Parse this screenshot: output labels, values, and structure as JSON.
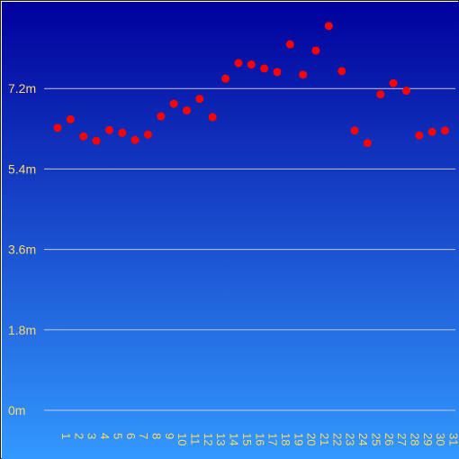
{
  "chart_data": {
    "type": "scatter",
    "title": "",
    "xlabel": "",
    "ylabel": "",
    "x": [
      1,
      2,
      3,
      4,
      5,
      6,
      7,
      8,
      9,
      10,
      11,
      12,
      13,
      14,
      15,
      16,
      17,
      18,
      19,
      20,
      21,
      22,
      23,
      24,
      25,
      26,
      27,
      28,
      29,
      30,
      31
    ],
    "x_tick_labels": [
      "1",
      "2",
      "3",
      "4",
      "5",
      "6",
      "7",
      "8",
      "9",
      "10",
      "11",
      "12",
      "13",
      "14",
      "15",
      "16",
      "17",
      "18",
      "19",
      "20",
      "21",
      "22",
      "23",
      "24",
      "25",
      "26",
      "27",
      "28",
      "29",
      "30",
      "31"
    ],
    "values": [
      6.32,
      6.51,
      6.13,
      6.03,
      6.27,
      6.21,
      6.05,
      6.17,
      6.58,
      6.86,
      6.71,
      6.97,
      6.56,
      7.42,
      7.77,
      7.74,
      7.65,
      7.57,
      8.19,
      7.51,
      8.05,
      8.6,
      7.59,
      6.26,
      5.98,
      7.07,
      7.32,
      7.15,
      6.15,
      6.23,
      6.26
    ],
    "ylim": [
      0,
      9
    ],
    "y_ticks": [
      0,
      1.8,
      3.6,
      5.4,
      7.2
    ],
    "y_tick_labels": [
      "0m",
      "1.8m",
      "3.6m",
      "5.4m",
      "7.2m"
    ],
    "grid": true,
    "legend": "none",
    "colors": {
      "background_top": "#00009b",
      "background_bottom": "#3399ff",
      "marker": "#ff0000",
      "tick_label": "#ffd966",
      "gridline": "#c8c8dc"
    }
  }
}
